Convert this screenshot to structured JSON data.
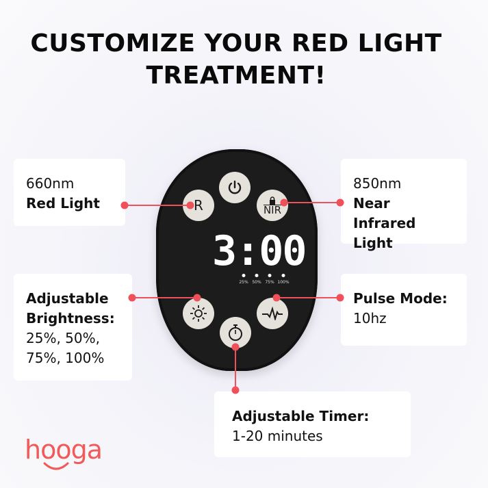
{
  "title": {
    "line1": "CUSTOMIZE YOUR RED LIGHT",
    "line2": "TREATMENT!"
  },
  "features": {
    "red": {
      "value": "660nm",
      "label": "Red Light"
    },
    "nir": {
      "value": "850nm",
      "label": "Near Infrared Light"
    },
    "brightness": {
      "label": "Adjustable Brightness:",
      "value1": "25%, 50%,",
      "value2": "75%, 100%"
    },
    "pulse": {
      "label": "Pulse Mode:",
      "value": "10hz"
    },
    "timer": {
      "label": "Adjustable Timer:",
      "value": "1-20 minutes"
    }
  },
  "device": {
    "display": "3:00",
    "levels": [
      "25%",
      "50%",
      "75%",
      "100%"
    ],
    "buttons": {
      "r": "R",
      "nir": "NIR"
    }
  },
  "brand": {
    "logo": "hooga"
  },
  "colors": {
    "accent": "#f0505a",
    "device": "#1c1c1c",
    "button": "#e4e2da"
  }
}
